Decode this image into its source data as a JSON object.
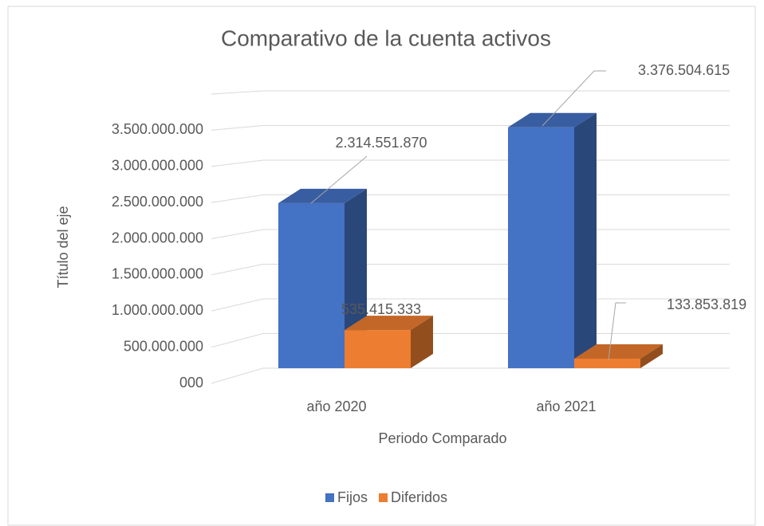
{
  "chart_data": {
    "type": "bar3d",
    "title": "Comparativo de la cuenta activos",
    "x_label": "Periodo Comparado",
    "y_label": "Título del eje",
    "categories": [
      "año 2020",
      "año 2021"
    ],
    "series": [
      {
        "name": "Fijos",
        "color": "#4472c4",
        "values": [
          2314551870,
          3376504615
        ],
        "value_labels": [
          "2.314.551.870",
          "3.376.504.615"
        ]
      },
      {
        "name": "Diferidos",
        "color": "#ed7d31",
        "values": [
          535415333,
          133853819
        ],
        "value_labels": [
          "535.415.333",
          "133.853.819"
        ]
      }
    ],
    "ylim": [
      0,
      4000000000
    ],
    "yticks": [
      {
        "value": 0,
        "label": "000"
      },
      {
        "value": 500000000,
        "label": "500.000.000"
      },
      {
        "value": 1000000000,
        "label": "1.000.000.000"
      },
      {
        "value": 1500000000,
        "label": "1.500.000.000"
      },
      {
        "value": 2000000000,
        "label": "2.000.000.000"
      },
      {
        "value": 2500000000,
        "label": "2.500.000.000"
      },
      {
        "value": 3000000000,
        "label": "3.000.000.000"
      },
      {
        "value": 3500000000,
        "label": "3.500.000.000"
      }
    ],
    "grid": true,
    "legend": "bottom"
  }
}
